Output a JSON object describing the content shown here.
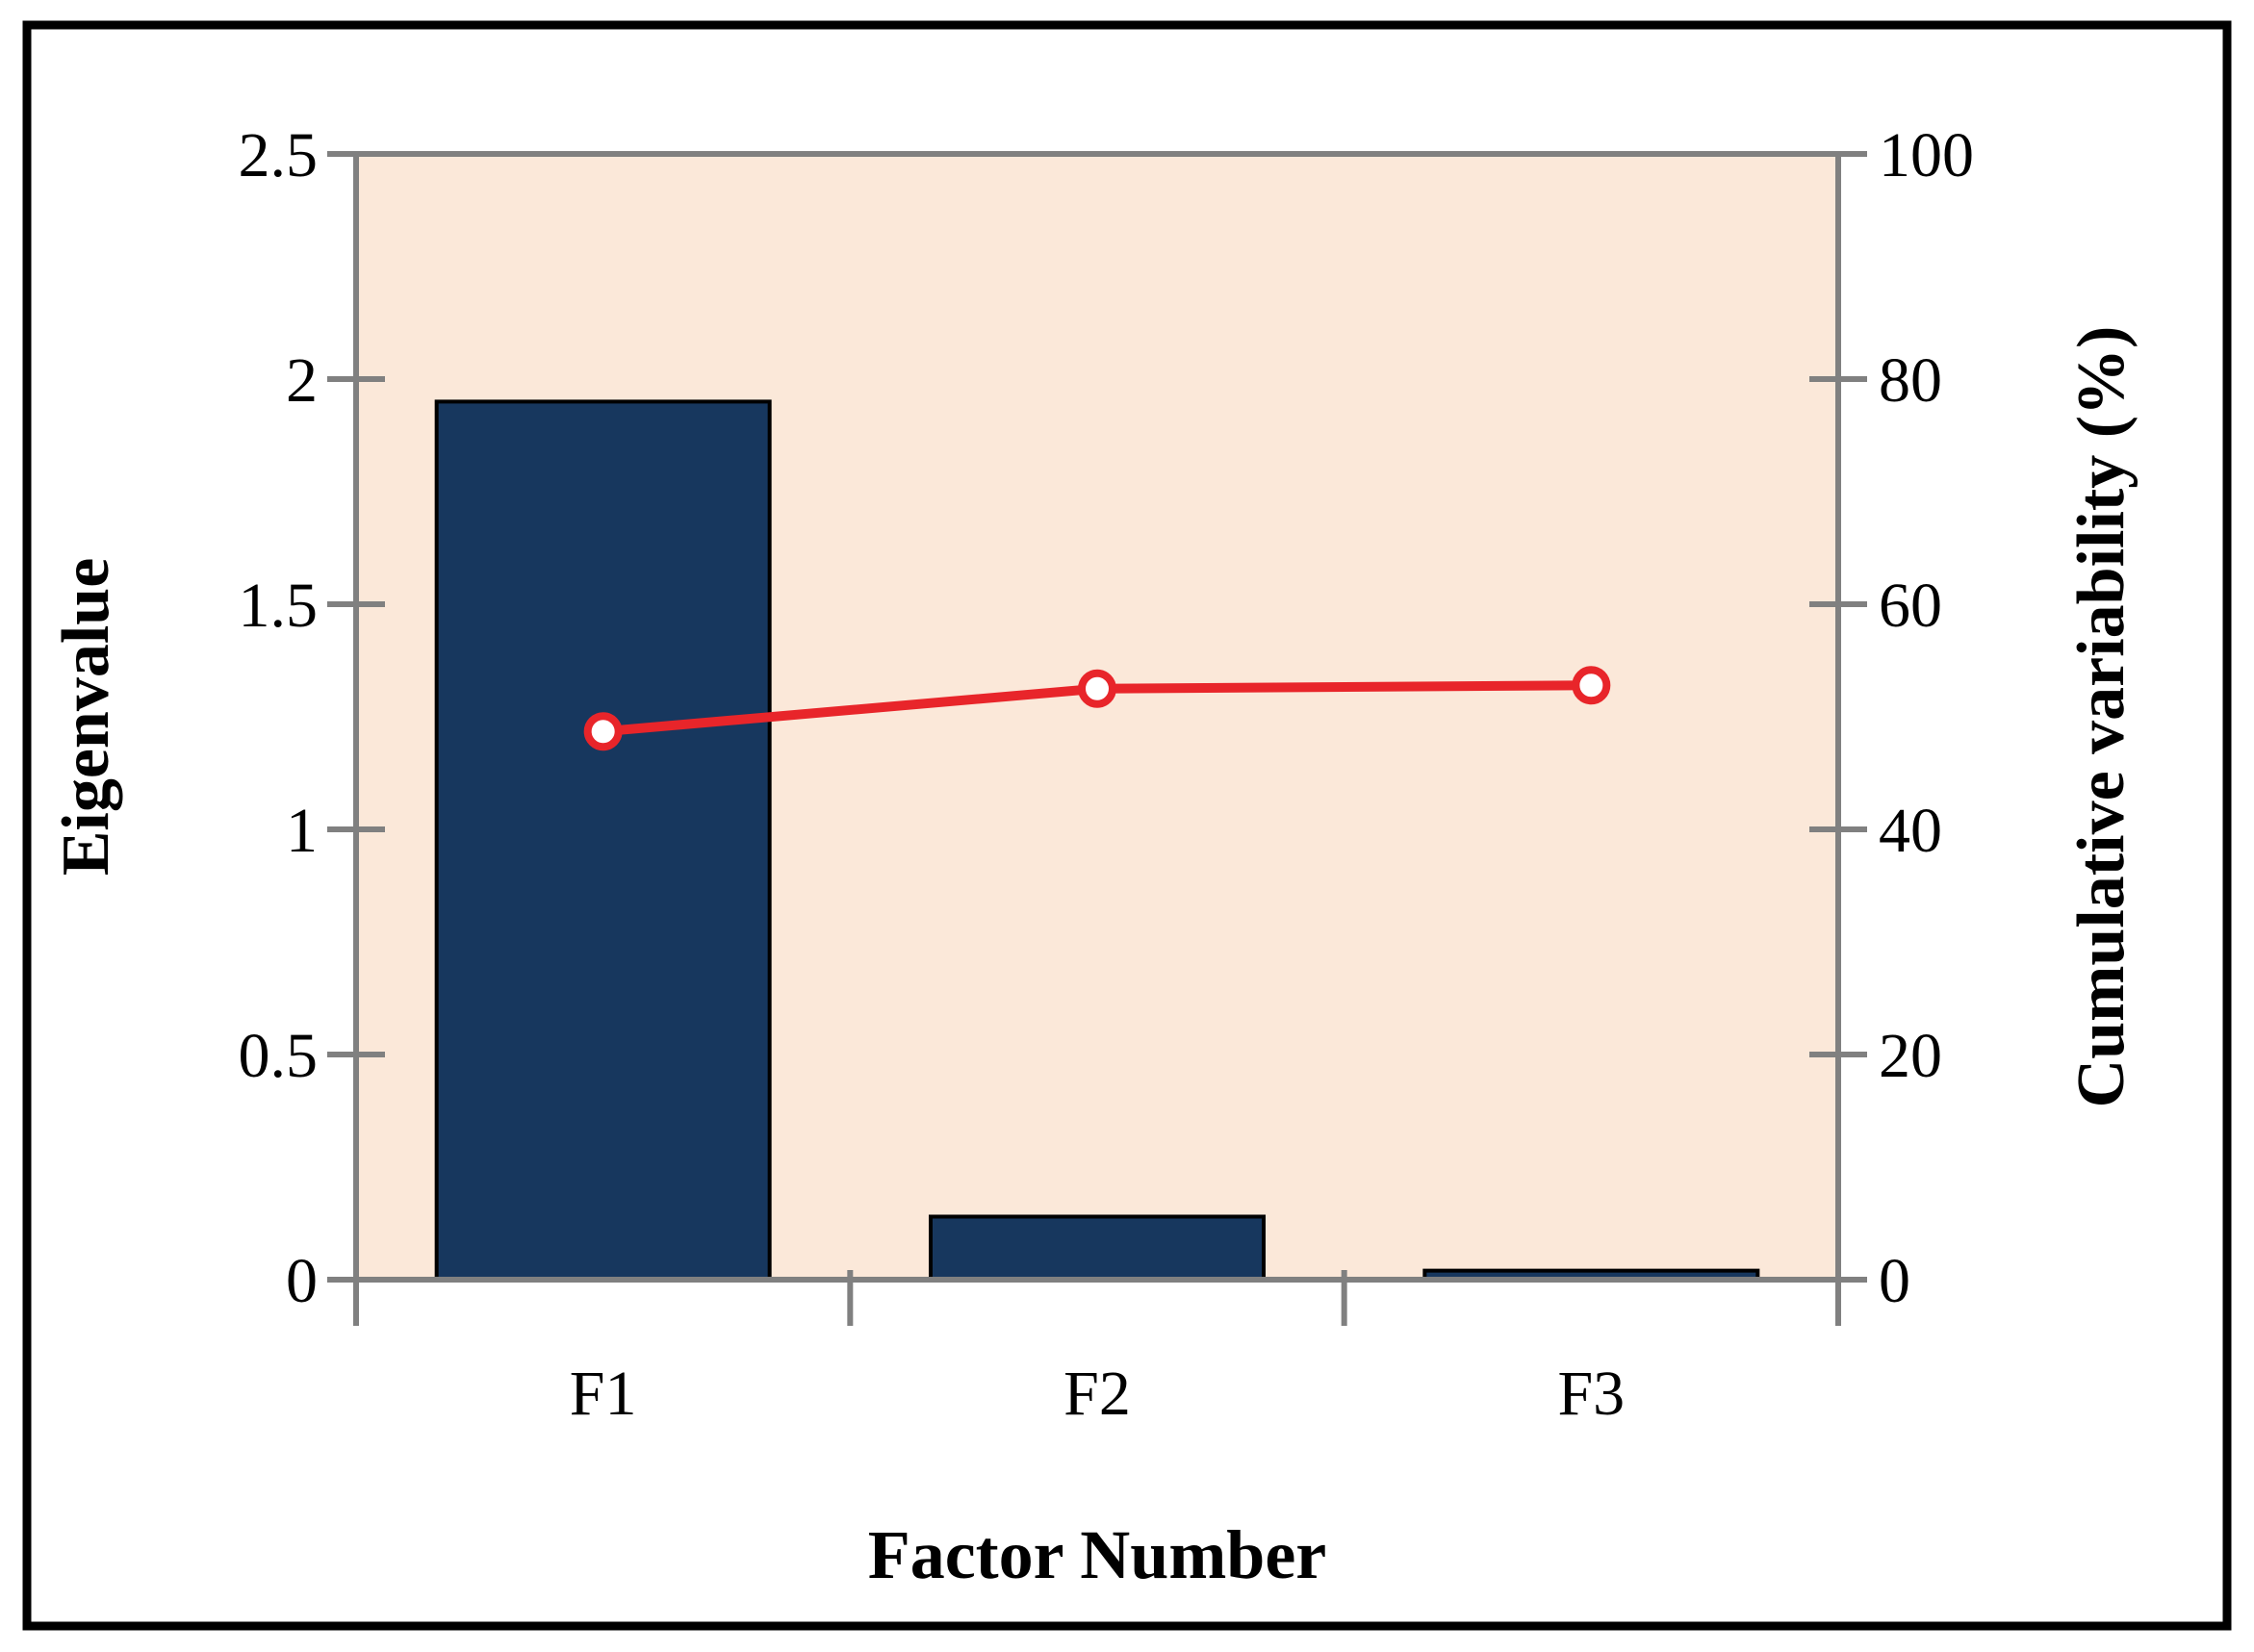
{
  "figure": {
    "description": "Scree plot of eigenvalues with cumulative variability overlay"
  },
  "chart_data": {
    "type": "bar",
    "title": "",
    "categories": [
      "F1",
      "F2",
      "F3"
    ],
    "series": [
      {
        "name": "Eigenvalue",
        "kind": "bar",
        "axis": "left",
        "values": [
          1.95,
          0.14,
          0.02
        ]
      },
      {
        "name": "Cumulative variability (%)",
        "kind": "line",
        "axis": "right",
        "values": [
          48.7,
          52.5,
          52.8
        ]
      }
    ],
    "xlabel": "Factor Number",
    "ylabel_left": "Eigenvalue",
    "ylabel_right": "Cumulative variability (%)",
    "ylim_left": [
      0,
      2.5
    ],
    "ylim_right": [
      0,
      100
    ],
    "yticks_left": [
      "0",
      "0.5",
      "1",
      "1.5",
      "2",
      "2.5"
    ],
    "yticks_right": [
      "0",
      "20",
      "40",
      "60",
      "80",
      "100"
    ],
    "grid": false,
    "legend": "none",
    "colors": {
      "bar": "#17375E",
      "bar_outline": "#000000",
      "line": "#E8252A",
      "marker_fill": "#FFFFFF",
      "plot_bg": "#FBE8D9",
      "axis": "#808080",
      "text": "#000000",
      "figure_border": "#000000",
      "page_bg": "#FFFFFF"
    }
  }
}
